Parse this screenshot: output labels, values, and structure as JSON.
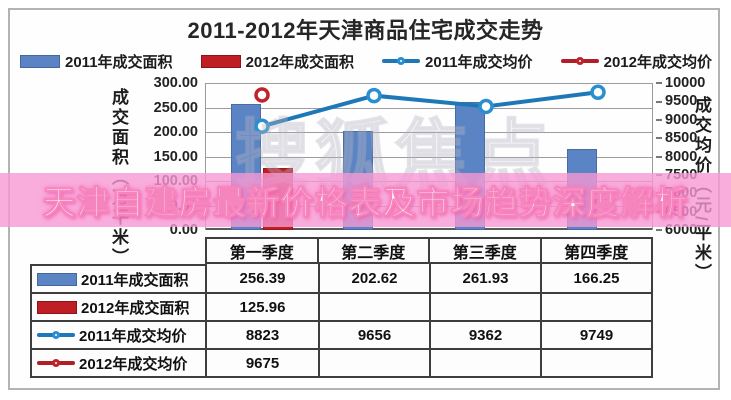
{
  "banner": {
    "text": "天津自建房最新价格表及市场趋势深度解析"
  },
  "watermark": {
    "text": "搜狐焦点"
  },
  "chart_data": {
    "type": "bar+line combo with data table",
    "title": "2011-2012年天津商品住宅成交走势",
    "categories": [
      "第一季度",
      "第二季度",
      "第三季度",
      "第四季度"
    ],
    "series": [
      {
        "name": "2011年成交面积",
        "type": "bar",
        "axis": "left",
        "color": "#5b84c4",
        "values": [
          256.39,
          202.62,
          261.93,
          166.25
        ]
      },
      {
        "name": "2012年成交面积",
        "type": "bar",
        "axis": "left",
        "color": "#be1e24",
        "values": [
          125.96,
          null,
          null,
          null
        ]
      },
      {
        "name": "2011年成交均价",
        "type": "line",
        "axis": "right",
        "color": "#1e78b8",
        "marker_color": "#2a8fd0",
        "values": [
          8823,
          9656,
          9362,
          9749
        ]
      },
      {
        "name": "2012年成交均价",
        "type": "line",
        "axis": "right",
        "color": "#b01e28",
        "marker_color": "#c0232b",
        "values": [
          9675,
          null,
          null,
          null
        ]
      }
    ],
    "left_axis": {
      "title": "成交面积（万平米）",
      "min": 0,
      "max": 300,
      "step": 50,
      "tick_labels": [
        "300.00",
        "250.00",
        "200.00",
        "150.00",
        "100.00",
        "50.00",
        "0.00"
      ]
    },
    "right_axis": {
      "title": "成交均价（元/平米）",
      "min": 6000,
      "max": 10000,
      "step": 500,
      "tick_labels": [
        "10000",
        "9500",
        "9000",
        "8500",
        "8000",
        "7500",
        "7000",
        "6500",
        "6000"
      ]
    },
    "grid": true,
    "legend_position": "top",
    "data_table": true
  }
}
